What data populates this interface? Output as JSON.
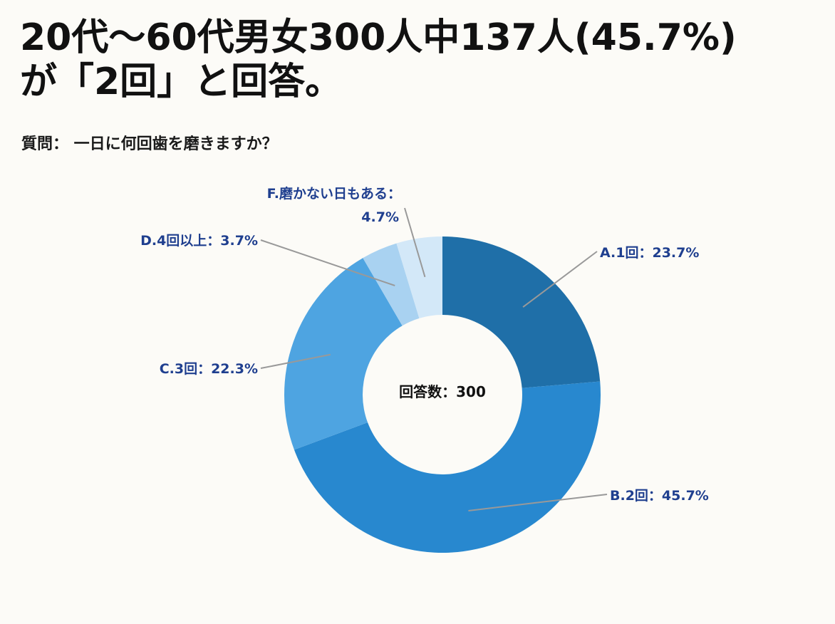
{
  "header": {
    "title_line1": "20代～60代男女300人中137人(45.7%)",
    "title_line2": "が「2回」と回答。"
  },
  "question": "質問： 一日に何回歯を磨きますか？",
  "chart_data": {
    "type": "pie",
    "donut": true,
    "center_label": "回答数：300",
    "slices": [
      {
        "label": "A.1回：23.7%",
        "value": 23.7,
        "color": "#1f6fa8"
      },
      {
        "label": "B.2回：45.7%",
        "value": 45.7,
        "color": "#2888cf"
      },
      {
        "label": "C.3回：22.3%",
        "value": 22.3,
        "color": "#4ea4e1"
      },
      {
        "label": "D.4回以上：3.7%",
        "value": 3.7,
        "color": "#a9d2f1"
      },
      {
        "label_line1": "F.磨かない日もある：",
        "label_line2": "4.7%",
        "value": 4.7,
        "color": "#d3e8f8"
      }
    ],
    "legend": "none",
    "label_color": "#1f3f8f",
    "leader_line_color": "#999999"
  }
}
